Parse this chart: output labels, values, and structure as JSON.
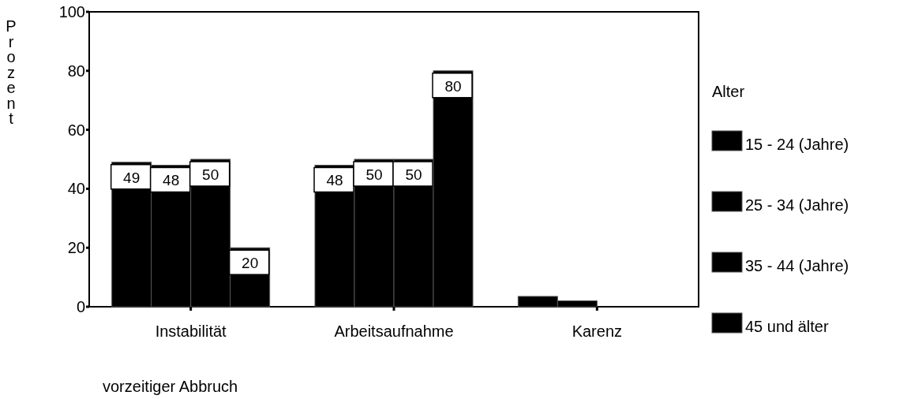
{
  "chart_data": {
    "type": "bar",
    "ylabel": "Prozent",
    "xlabel": "vorzeitiger Abbruch",
    "legend_title": "Alter",
    "legend": "right",
    "categories": [
      "Instabilität",
      "Arbeitsaufnahme",
      "Karenz"
    ],
    "ylim": [
      0,
      100
    ],
    "yticks": [
      0,
      20,
      40,
      60,
      80,
      100
    ],
    "series": [
      {
        "name": "15 - 24 (Jahre)",
        "color": "#000000",
        "values": [
          49,
          48,
          3.5
        ],
        "value_labels": [
          "49",
          "48",
          null
        ]
      },
      {
        "name": "25 - 34 (Jahre)",
        "color": "#000000",
        "values": [
          48,
          50,
          2
        ],
        "value_labels": [
          "48",
          "50",
          null
        ]
      },
      {
        "name": "35 - 44 (Jahre)",
        "color": "#000000",
        "values": [
          50,
          50,
          null
        ],
        "value_labels": [
          "50",
          "50",
          null
        ]
      },
      {
        "name": "45 und älter",
        "color": "#000000",
        "values": [
          20,
          80,
          null
        ],
        "value_labels": [
          "20",
          "80",
          null
        ]
      }
    ]
  }
}
